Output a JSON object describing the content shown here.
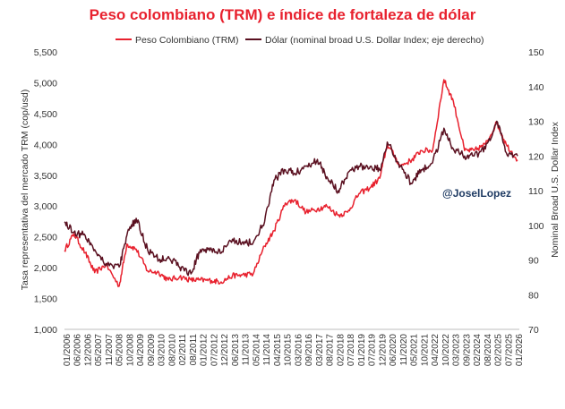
{
  "chart_data": {
    "type": "line",
    "title": "Peso colombiano (TRM) e índice de fortaleza de dólar",
    "handle": "@JoselLopez",
    "ylabel_left": "Tasa representativa del mercado TRM (cop/usd)",
    "ylabel_right": "Nominal Broad U.S. Dollar Index",
    "legend_position": "top",
    "grid": false,
    "ylim_left": [
      1000,
      5500
    ],
    "ylim_right": [
      70,
      150
    ],
    "yticks_left": [
      "1,000",
      "1,500",
      "2,000",
      "2,500",
      "3,000",
      "3,500",
      "4,000",
      "4,500",
      "5,000",
      "5,500"
    ],
    "yticks_right": [
      "70",
      "80",
      "90",
      "100",
      "110",
      "120",
      "130",
      "140",
      "150"
    ],
    "x_ticks": [
      "01/2006",
      "06/2006",
      "12/2006",
      "05/2007",
      "11/2007",
      "05/2008",
      "10/2008",
      "04/2009",
      "09/2009",
      "03/2010",
      "08/2010",
      "02/2011",
      "08/2011",
      "01/2012",
      "07/2012",
      "12/2012",
      "06/2013",
      "11/2013",
      "05/2014",
      "11/2014",
      "04/2015",
      "10/2015",
      "03/2016",
      "09/2016",
      "03/2017",
      "08/2017",
      "02/2018",
      "07/2018",
      "01/2019",
      "07/2019",
      "12/2019",
      "06/2020",
      "11/2020",
      "05/2021",
      "10/2021",
      "04/2022",
      "10/2022",
      "03/2023",
      "09/2023",
      "02/2024",
      "08/2024",
      "02/2025",
      "07/2025",
      "01/2026"
    ],
    "series": [
      {
        "name": "Peso Colombiano (TRM)",
        "axis": "left",
        "color": "#e8212e",
        "x": [
          "2006-01",
          "2006-06",
          "2006-12",
          "2007-05",
          "2007-11",
          "2008-06",
          "2008-10",
          "2009-03",
          "2009-09",
          "2010-03",
          "2010-08",
          "2011-02",
          "2011-08",
          "2012-01",
          "2012-07",
          "2012-12",
          "2013-06",
          "2013-11",
          "2014-05",
          "2014-11",
          "2015-04",
          "2015-10",
          "2016-03",
          "2016-09",
          "2017-03",
          "2017-08",
          "2018-02",
          "2018-07",
          "2019-01",
          "2019-07",
          "2019-12",
          "2020-04",
          "2020-11",
          "2021-05",
          "2021-10",
          "2022-04",
          "2022-10",
          "2023-03",
          "2023-09",
          "2024-02",
          "2024-08",
          "2025-02",
          "2025-07",
          "2026-01"
        ],
        "values": [
          2280,
          2550,
          2240,
          1920,
          2050,
          1700,
          2380,
          2300,
          1950,
          1920,
          1800,
          1850,
          1800,
          1800,
          1790,
          1770,
          1870,
          1880,
          1900,
          2350,
          2600,
          3050,
          3100,
          2900,
          2950,
          3000,
          2850,
          2900,
          3200,
          3300,
          3450,
          4000,
          3650,
          3750,
          3900,
          3900,
          5050,
          4700,
          3900,
          3900,
          4000,
          4350,
          4000,
          3750
        ]
      },
      {
        "name": "Dólar (nominal broad U.S. Dollar Index; eje derecho)",
        "axis": "right",
        "color": "#5a1020",
        "x": [
          "2006-01",
          "2006-06",
          "2006-12",
          "2007-05",
          "2007-11",
          "2008-06",
          "2008-10",
          "2009-03",
          "2009-09",
          "2010-03",
          "2010-08",
          "2011-02",
          "2011-08",
          "2012-01",
          "2012-07",
          "2012-12",
          "2013-06",
          "2013-11",
          "2014-05",
          "2014-11",
          "2015-04",
          "2015-10",
          "2016-03",
          "2016-09",
          "2017-03",
          "2017-08",
          "2018-02",
          "2018-07",
          "2019-01",
          "2019-07",
          "2019-12",
          "2020-04",
          "2020-11",
          "2021-05",
          "2021-10",
          "2022-04",
          "2022-10",
          "2023-03",
          "2023-09",
          "2024-02",
          "2024-08",
          "2025-02",
          "2025-07",
          "2026-01"
        ],
        "values": [
          101,
          98,
          97,
          93,
          89,
          88,
          97,
          102,
          93,
          90,
          91,
          88,
          86,
          93,
          93,
          92,
          96,
          95,
          95,
          101,
          113,
          116,
          115,
          117,
          119,
          114,
          110,
          115,
          117,
          117,
          116,
          124,
          117,
          112,
          116,
          118,
          128,
          122,
          120,
          120,
          122,
          130,
          121,
          120
        ]
      }
    ]
  }
}
